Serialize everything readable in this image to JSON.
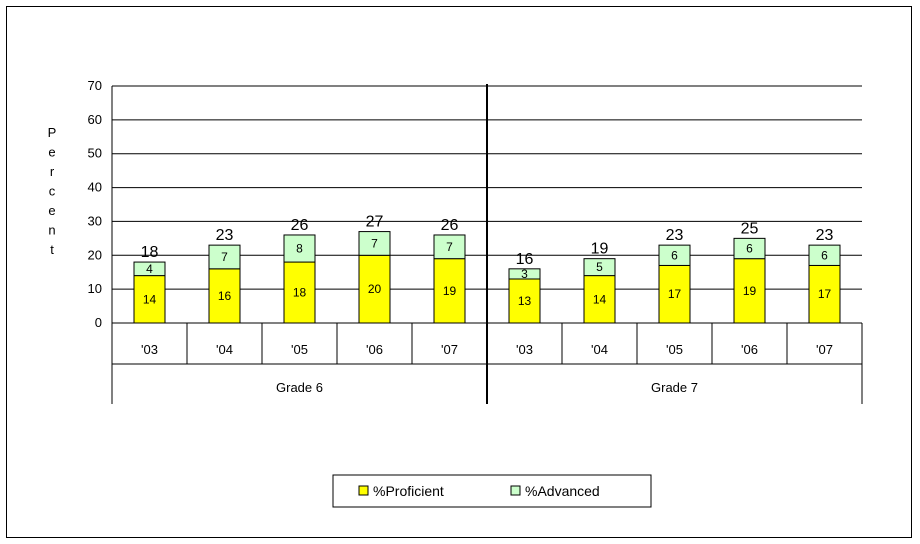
{
  "chart_data": {
    "type": "bar",
    "stacked": true,
    "ylabel": "Percent",
    "ylim": [
      0,
      70
    ],
    "yticks": [
      0,
      10,
      20,
      30,
      40,
      50,
      60,
      70
    ],
    "grid": true,
    "groups": [
      {
        "name": "Grade 6",
        "categories": [
          "'03",
          "'04",
          "'05",
          "'06",
          "'07"
        ],
        "proficient": [
          14,
          16,
          18,
          20,
          19
        ],
        "advanced": [
          4,
          7,
          8,
          7,
          7
        ],
        "totals": [
          18,
          23,
          26,
          27,
          26
        ]
      },
      {
        "name": "Grade 7",
        "categories": [
          "'03",
          "'04",
          "'05",
          "'06",
          "'07"
        ],
        "proficient": [
          13,
          14,
          17,
          19,
          17
        ],
        "advanced": [
          3,
          5,
          6,
          6,
          6
        ],
        "totals": [
          16,
          19,
          23,
          25,
          23
        ]
      }
    ],
    "series": [
      {
        "name": "%Proficient",
        "color": "#ffff00"
      },
      {
        "name": "%Advanced",
        "color": "#ccffcc"
      }
    ],
    "legend_position": "bottom"
  }
}
